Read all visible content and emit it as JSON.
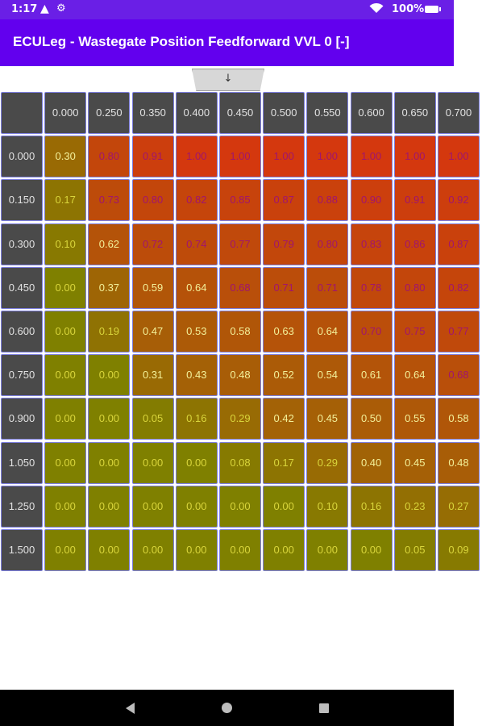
{
  "status_bar": {
    "time": "1:17",
    "battery": "100%",
    "icons": [
      "warning-icon",
      "settings-icon",
      "wifi-icon",
      "battery-icon"
    ]
  },
  "app_bar": {
    "title": "ECULeg - Wastegate Position Feedforward VVL 0 [-]",
    "background": "#6200ee"
  },
  "collapse_handle": {
    "label": "↓"
  },
  "table": {
    "column_headers": [
      "0.000",
      "0.250",
      "0.350",
      "0.400",
      "0.450",
      "0.500",
      "0.550",
      "0.600",
      "0.650",
      "0.700"
    ],
    "row_headers": [
      "0.000",
      "0.150",
      "0.300",
      "0.450",
      "0.600",
      "0.750",
      "0.900",
      "1.050",
      "1.250",
      "1.500"
    ],
    "values": [
      [
        "0.30",
        "0.80",
        "0.91",
        "1.00",
        "1.00",
        "1.00",
        "1.00",
        "1.00",
        "1.00",
        "1.00"
      ],
      [
        "0.17",
        "0.73",
        "0.80",
        "0.82",
        "0.85",
        "0.87",
        "0.88",
        "0.90",
        "0.91",
        "0.92"
      ],
      [
        "0.10",
        "0.62",
        "0.72",
        "0.74",
        "0.77",
        "0.79",
        "0.80",
        "0.83",
        "0.86",
        "0.87"
      ],
      [
        "0.00",
        "0.37",
        "0.59",
        "0.64",
        "0.68",
        "0.71",
        "0.71",
        "0.78",
        "0.80",
        "0.82"
      ],
      [
        "0.00",
        "0.19",
        "0.47",
        "0.53",
        "0.58",
        "0.63",
        "0.64",
        "0.70",
        "0.75",
        "0.77"
      ],
      [
        "0.00",
        "0.00",
        "0.31",
        "0.43",
        "0.48",
        "0.52",
        "0.54",
        "0.61",
        "0.64",
        "0.68"
      ],
      [
        "0.00",
        "0.00",
        "0.05",
        "0.16",
        "0.29",
        "0.42",
        "0.45",
        "0.50",
        "0.55",
        "0.58"
      ],
      [
        "0.00",
        "0.00",
        "0.00",
        "0.00",
        "0.08",
        "0.17",
        "0.29",
        "0.40",
        "0.45",
        "0.48"
      ],
      [
        "0.00",
        "0.00",
        "0.00",
        "0.00",
        "0.00",
        "0.00",
        "0.10",
        "0.16",
        "0.23",
        "0.27"
      ],
      [
        "0.00",
        "0.00",
        "0.00",
        "0.00",
        "0.00",
        "0.00",
        "0.00",
        "0.00",
        "0.05",
        "0.09"
      ]
    ],
    "colors": {
      "low": "#7f8000",
      "high": "#d4380e",
      "header_bg": "#4a4a4a",
      "border": "#7d7fe0"
    }
  },
  "nav_bar": {
    "icons": [
      "back-icon",
      "home-icon",
      "recents-icon"
    ]
  }
}
